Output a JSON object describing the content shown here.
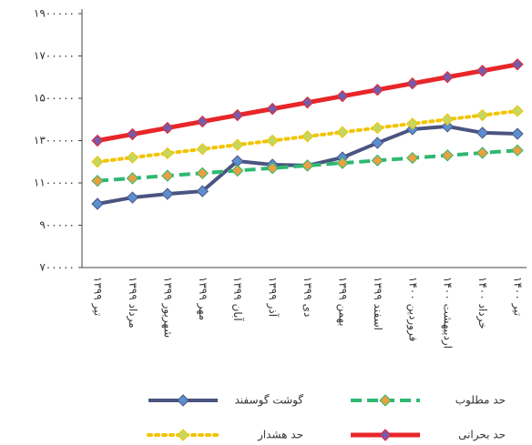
{
  "chart_data": {
    "type": "line",
    "categories": [
      "تیر ۱۳۹۹",
      "مرداد ۱۳۹۹",
      "شهریور ۱۳۹۹",
      "مهر ۱۳۹۹",
      "آبان ۱۳۹۹",
      "آذر ۱۳۹۹",
      "دی ۱۳۹۹",
      "بهمن ۱۳۹۹",
      "اسفند ۱۳۹۹",
      "فروردین ۱۴۰۰",
      "اردیبهشت ۱۴۰۰",
      "خرداد ۱۴۰۰",
      "تیر ۱۴۰۰"
    ],
    "series": [
      {
        "name": "گوشت گوسفند",
        "color": "#4b5480",
        "marker_color": "#5b8fd0",
        "line_style": "solid",
        "values": [
          1001000,
          1031000,
          1048000,
          1061000,
          1203000,
          1186000,
          1182000,
          1220000,
          1289000,
          1354000,
          1367000,
          1337000,
          1332000
        ]
      },
      {
        "name": "حد مطلوب",
        "color": "#2eb872",
        "marker_color": "#e8a040",
        "line_style": "dashed",
        "values": [
          1110000,
          1122000,
          1134000,
          1146000,
          1158000,
          1170000,
          1182000,
          1194000,
          1206000,
          1218000,
          1230000,
          1242000,
          1254000
        ]
      },
      {
        "name": "حد هشدار",
        "color": "#f2c400",
        "marker_color": "#c4d860",
        "line_style": "dotted",
        "values": [
          1200000,
          1220000,
          1240000,
          1260000,
          1280000,
          1300000,
          1320000,
          1340000,
          1360000,
          1380000,
          1400000,
          1420000,
          1440000
        ]
      },
      {
        "name": "حد بحرانی",
        "color": "#e8262a",
        "marker_color": "#7a5aa8",
        "line_style": "solid",
        "values": [
          1300000,
          1330000,
          1360000,
          1390000,
          1420000,
          1450000,
          1480000,
          1510000,
          1540000,
          1570000,
          1600000,
          1630000,
          1660000
        ]
      }
    ],
    "ylim": [
      700000,
      1900000
    ],
    "yticks": [
      {
        "value": 700000,
        "label": "۷۰۰۰۰۰"
      },
      {
        "value": 900000,
        "label": "۹۰۰۰۰۰"
      },
      {
        "value": 1100000,
        "label": "۱۱۰۰۰۰۰"
      },
      {
        "value": 1300000,
        "label": "۱۳۰۰۰۰۰"
      },
      {
        "value": 1500000,
        "label": "۱۵۰۰۰۰۰"
      },
      {
        "value": 1700000,
        "label": "۱۷۰۰۰۰۰"
      },
      {
        "value": 1900000,
        "label": "۱۹۰۰۰۰۰"
      }
    ],
    "grid": false
  }
}
